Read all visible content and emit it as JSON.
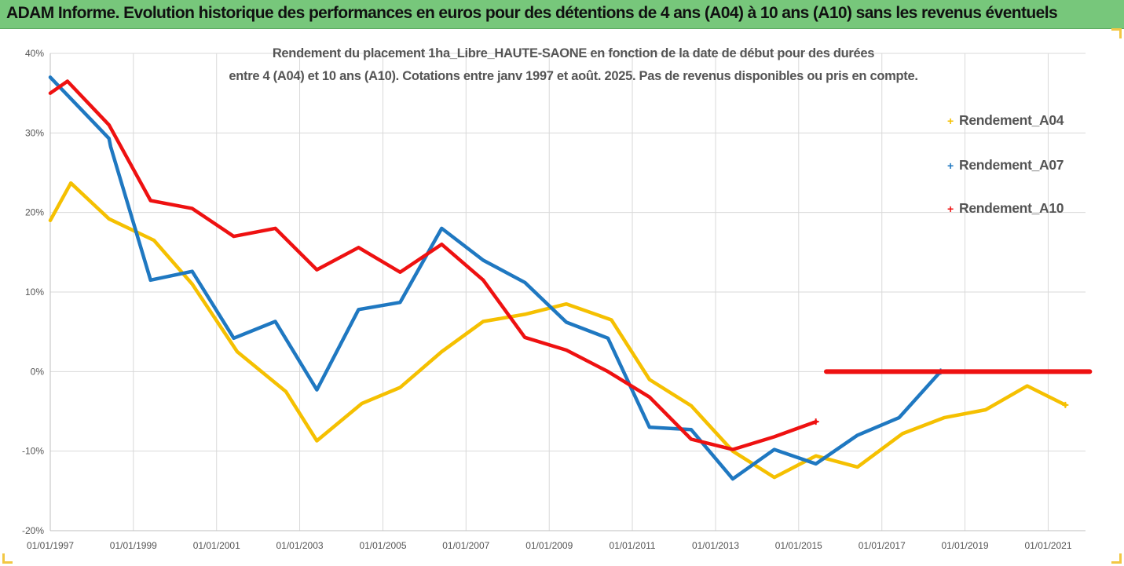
{
  "banner": {
    "text": "ADAM Informe. Evolution historique des performances en euros pour des détentions de 4 ans (A04) à 10 ans (A10) sans les revenus éventuels"
  },
  "colors": {
    "banner_bg": "#77c77b",
    "A04": "#f5c001",
    "A07": "#1f78c1",
    "A10": "#ee1111",
    "grid": "#d9d9d9",
    "text": "#555555"
  },
  "chart_data": {
    "type": "line",
    "title_line_1": "Rendement du placement 1ha_Libre_HAUTE-SAONE en fonction de la date de début pour des durées",
    "title_line_2": "entre 4 (A04) et 10 ans (A10). Cotations entre janv 1997 et août. 2025. Pas de revenus disponibles ou pris en compte.",
    "xlabel": "",
    "ylabel": "",
    "x_axis": "date",
    "xlim": [
      "1997-01-01",
      "2022-01-01"
    ],
    "x_tick_labels": [
      "01/01/1997",
      "01/01/1999",
      "01/01/2001",
      "01/01/2003",
      "01/01/2005",
      "01/01/2007",
      "01/01/2009",
      "01/01/2011",
      "01/01/2013",
      "01/01/2015",
      "01/01/2017",
      "01/01/2019",
      "01/01/2021"
    ],
    "x_tick_dates": [
      "1997-01-01",
      "1999-01-01",
      "2001-01-01",
      "2003-01-01",
      "2005-01-01",
      "2007-01-01",
      "2009-01-01",
      "2011-01-01",
      "2013-01-01",
      "2015-01-01",
      "2017-01-01",
      "2019-01-01",
      "2021-01-01"
    ],
    "ylim": [
      -20,
      40
    ],
    "y_unit": "%",
    "y_tick_labels": [
      "40%",
      "30%",
      "20%",
      "10%",
      "0%",
      "-10%",
      "-20%"
    ],
    "y_tick_values": [
      40,
      30,
      20,
      10,
      0,
      -10,
      -20
    ],
    "grid": true,
    "legend_position": "right",
    "series": [
      {
        "name": "Rendement_A04",
        "color": "#f5c001",
        "points": [
          [
            "1997-01-01",
            19.0
          ],
          [
            "1997-07-01",
            23.7
          ],
          [
            "1998-06-01",
            19.2
          ],
          [
            "1999-07-01",
            16.5
          ],
          [
            "2000-06-01",
            11.0
          ],
          [
            "2001-07-01",
            2.5
          ],
          [
            "2002-09-01",
            -2.5
          ],
          [
            "2003-06-01",
            -8.7
          ],
          [
            "2004-07-01",
            -4.0
          ],
          [
            "2005-06-01",
            -2.0
          ],
          [
            "2006-06-01",
            2.5
          ],
          [
            "2007-06-01",
            6.3
          ],
          [
            "2008-06-01",
            7.2
          ],
          [
            "2009-06-01",
            8.5
          ],
          [
            "2010-07-01",
            6.5
          ],
          [
            "2011-06-01",
            -1.0
          ],
          [
            "2012-06-01",
            -4.3
          ],
          [
            "2013-06-01",
            -10.0
          ],
          [
            "2014-06-01",
            -13.3
          ],
          [
            "2015-06-01",
            -10.6
          ],
          [
            "2016-06-01",
            -12.0
          ],
          [
            "2017-07-01",
            -7.8
          ],
          [
            "2018-07-01",
            -5.8
          ],
          [
            "2019-07-01",
            -4.8
          ],
          [
            "2020-07-01",
            -1.8
          ],
          [
            "2021-06-01",
            -4.2
          ]
        ]
      },
      {
        "name": "Rendement_A07",
        "color": "#1f78c1",
        "points": [
          [
            "1997-01-01",
            37.0
          ],
          [
            "1998-06-01",
            29.3
          ],
          [
            "1998-06-15",
            28.3
          ],
          [
            "1999-06-01",
            11.5
          ],
          [
            "2000-06-01",
            12.6
          ],
          [
            "2001-06-01",
            4.2
          ],
          [
            "2002-06-01",
            6.3
          ],
          [
            "2003-06-01",
            -2.3
          ],
          [
            "2004-06-01",
            7.8
          ],
          [
            "2005-06-01",
            8.7
          ],
          [
            "2006-06-01",
            18.0
          ],
          [
            "2007-06-01",
            14.0
          ],
          [
            "2008-06-01",
            11.2
          ],
          [
            "2009-06-01",
            6.2
          ],
          [
            "2010-06-01",
            4.2
          ],
          [
            "2011-06-01",
            -7.0
          ],
          [
            "2012-06-01",
            -7.3
          ],
          [
            "2013-06-01",
            -13.5
          ],
          [
            "2014-06-01",
            -9.8
          ],
          [
            "2015-06-01",
            -11.6
          ],
          [
            "2016-06-01",
            -8.0
          ],
          [
            "2017-06-01",
            -5.8
          ],
          [
            "2018-06-01",
            0.0
          ]
        ]
      },
      {
        "name": "Rendement_A10",
        "color": "#ee1111",
        "points": [
          [
            "1997-01-01",
            35.0
          ],
          [
            "1997-06-01",
            36.5
          ],
          [
            "1998-06-01",
            31.0
          ],
          [
            "1999-06-01",
            21.5
          ],
          [
            "2000-06-01",
            20.5
          ],
          [
            "2001-06-01",
            17.0
          ],
          [
            "2002-06-01",
            18.0
          ],
          [
            "2003-06-01",
            12.8
          ],
          [
            "2004-06-01",
            15.6
          ],
          [
            "2005-06-01",
            12.5
          ],
          [
            "2006-06-01",
            16.0
          ],
          [
            "2007-06-01",
            11.5
          ],
          [
            "2008-06-01",
            4.3
          ],
          [
            "2009-06-01",
            2.7
          ],
          [
            "2010-06-01",
            0.0
          ],
          [
            "2011-06-01",
            -3.2
          ],
          [
            "2012-06-01",
            -8.5
          ],
          [
            "2013-06-01",
            -9.8
          ],
          [
            "2014-06-01",
            -8.2
          ],
          [
            "2015-06-01",
            -6.3
          ]
        ],
        "flat_segment": {
          "from": "2015-09-01",
          "to": "2022-01-01",
          "value": 0.0
        }
      }
    ]
  }
}
